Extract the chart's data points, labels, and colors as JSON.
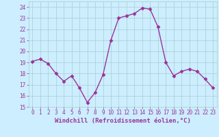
{
  "x": [
    0,
    1,
    2,
    3,
    4,
    5,
    6,
    7,
    8,
    9,
    10,
    11,
    12,
    13,
    14,
    15,
    16,
    17,
    18,
    19,
    20,
    21,
    22,
    23
  ],
  "y": [
    19.1,
    19.3,
    18.9,
    18.0,
    17.3,
    17.8,
    16.7,
    15.4,
    16.3,
    17.9,
    21.0,
    23.0,
    23.2,
    23.4,
    23.9,
    23.8,
    22.2,
    19.0,
    17.8,
    18.2,
    18.4,
    18.2,
    17.5,
    16.7
  ],
  "line_color": "#993399",
  "marker": "D",
  "marker_size": 2.5,
  "bg_color": "#cceeff",
  "grid_color": "#aacccc",
  "xlabel": "Windchill (Refroidissement éolien,°C)",
  "ylim": [
    15,
    24.5
  ],
  "xlim": [
    -0.5,
    23.5
  ],
  "yticks": [
    15,
    16,
    17,
    18,
    19,
    20,
    21,
    22,
    23,
    24
  ],
  "xticks": [
    0,
    1,
    2,
    3,
    4,
    5,
    6,
    7,
    8,
    9,
    10,
    11,
    12,
    13,
    14,
    15,
    16,
    17,
    18,
    19,
    20,
    21,
    22,
    23
  ],
  "tick_color": "#993399",
  "tick_fontsize": 5.5,
  "xlabel_fontsize": 6.5,
  "linewidth": 1.0
}
